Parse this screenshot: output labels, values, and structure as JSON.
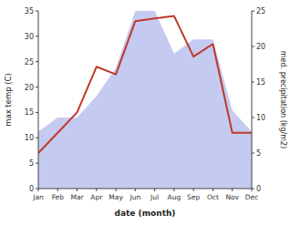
{
  "chart_data": {
    "type": "line",
    "xlabel": "date (month)",
    "ylabel": "max temp (C)",
    "y2label": "med. precipitation (kg/m2)",
    "categories": [
      "Jan",
      "Feb",
      "Mar",
      "Apr",
      "May",
      "Jun",
      "Jul",
      "Aug",
      "Sep",
      "Oct",
      "Nov",
      "Dec"
    ],
    "series": [
      {
        "type": "line",
        "color": "#c0392b",
        "values": [
          7,
          11,
          15,
          24,
          22.5,
          33,
          33.5,
          34,
          26,
          28.5,
          11,
          11
        ]
      },
      {
        "type": "area",
        "color": "#c5caf0",
        "axis": "y2",
        "values": [
          8,
          10,
          10,
          13,
          17,
          25,
          25,
          19,
          21,
          21,
          11,
          8
        ]
      }
    ],
    "ylim": [
      0,
      35
    ],
    "yticks": [
      0,
      5,
      10,
      15,
      20,
      25,
      30,
      35
    ],
    "y2lim": [
      0,
      25
    ],
    "y2ticks": [
      0,
      5,
      10,
      15,
      20,
      25
    ],
    "grid": false
  }
}
